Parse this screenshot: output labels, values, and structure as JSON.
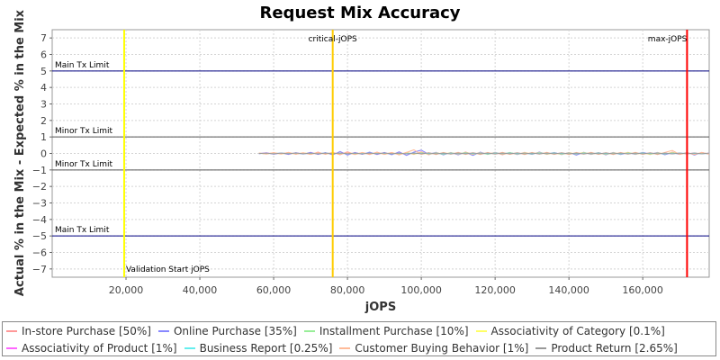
{
  "chart_data": {
    "type": "line",
    "title": "Request Mix Accuracy",
    "xlabel": "jOPS",
    "ylabel": "Actual % in the Mix - Expected % in the Mix",
    "xlim": [
      0,
      178000
    ],
    "ylim": [
      -7.5,
      7.5
    ],
    "x_ticks": [
      20000,
      40000,
      60000,
      80000,
      100000,
      120000,
      140000,
      160000
    ],
    "x_tick_labels": [
      "20,000",
      "40,000",
      "60,000",
      "80,000",
      "100,000",
      "120,000",
      "140,000",
      "160,000"
    ],
    "y_ticks": [
      -7,
      -6,
      -5,
      -4,
      -3,
      -2,
      -1,
      0,
      1,
      2,
      3,
      4,
      5,
      6,
      7
    ],
    "y_tick_labels": [
      "−7",
      "−6",
      "−5",
      "−4",
      "−3",
      "−2",
      "−1",
      "0",
      "1",
      "2",
      "3",
      "4",
      "5",
      "6",
      "7"
    ],
    "grid": true,
    "legend_position": "bottom",
    "horizontal_lines": [
      {
        "label": "Main Tx Limit",
        "y": 5,
        "color": "#000080"
      },
      {
        "label": "Minor Tx Limit",
        "y": 1,
        "color": "#555555"
      },
      {
        "label": "Minor Tx Limit",
        "y": -1,
        "color": "#555555"
      },
      {
        "label": "Main Tx Limit",
        "y": -5,
        "color": "#000080"
      }
    ],
    "vertical_lines": [
      {
        "label": "Validation Start jOPS",
        "x": 19500,
        "color": "#ffff00"
      },
      {
        "label": "critical-jOPS",
        "x": 76000,
        "color": "#ffcc00"
      },
      {
        "label": "max-jOPS",
        "x": 172000,
        "color": "#ff0000"
      }
    ],
    "x": [
      56000,
      58000,
      60000,
      62000,
      64000,
      66000,
      68000,
      70000,
      72000,
      74000,
      76000,
      78000,
      80000,
      82000,
      84000,
      86000,
      88000,
      90000,
      92000,
      94000,
      96000,
      98000,
      100000,
      102000,
      104000,
      106000,
      108000,
      110000,
      112000,
      114000,
      116000,
      118000,
      120000,
      122000,
      124000,
      126000,
      128000,
      130000,
      132000,
      134000,
      136000,
      138000,
      140000,
      142000,
      144000,
      146000,
      148000,
      150000,
      152000,
      154000,
      156000,
      158000,
      160000,
      162000,
      164000,
      166000,
      168000,
      170000,
      172000,
      174000,
      176000,
      178000
    ],
    "series": [
      {
        "name": "In-store Purchase [50%]",
        "color": "#ff9999",
        "values": [
          0.02,
          -0.03,
          0.05,
          -0.04,
          0.06,
          -0.05,
          0.04,
          -0.06,
          0.08,
          -0.05,
          0.06,
          -0.08,
          0.1,
          -0.06,
          0.05,
          -0.07,
          0.08,
          -0.05,
          0.06,
          -0.09,
          0.07,
          -0.06,
          0.1,
          -0.08,
          0.06,
          -0.07,
          0.05,
          -0.08,
          0.09,
          -0.06,
          0.07,
          -0.05,
          0.06,
          -0.08,
          0.05,
          -0.06,
          0.07,
          -0.05,
          0.08,
          -0.06,
          0.05,
          -0.07,
          0.06,
          -0.05,
          0.07,
          -0.06,
          0.05,
          -0.08,
          0.06,
          -0.05,
          0.07,
          -0.06,
          0.05,
          -0.07,
          0.06,
          -0.05,
          0.08,
          -0.06,
          0.05,
          -0.07,
          0.06,
          -0.05
        ]
      },
      {
        "name": "Online Purchase [35%]",
        "color": "#8888ff",
        "values": [
          -0.02,
          0.04,
          -0.05,
          0.03,
          -0.06,
          0.05,
          -0.04,
          0.07,
          -0.06,
          0.05,
          -0.09,
          0.12,
          -0.1,
          0.06,
          -0.05,
          0.08,
          -0.07,
          0.06,
          -0.08,
          0.1,
          -0.12,
          0.08,
          0.2,
          -0.05,
          0.07,
          -0.09,
          0.06,
          -0.08,
          0.05,
          -0.12,
          0.08,
          -0.06,
          0.07,
          -0.05,
          0.06,
          -0.07,
          0.05,
          -0.06,
          0.08,
          -0.05,
          0.06,
          -0.07,
          0.05,
          -0.1,
          0.07,
          -0.06,
          0.05,
          -0.08,
          0.06,
          -0.07,
          0.05,
          -0.06,
          0.07,
          -0.05,
          0.06,
          -0.08,
          0.05,
          -0.06,
          0.07,
          -0.1,
          0.06,
          -0.05
        ]
      },
      {
        "name": "Installment Purchase [10%]",
        "color": "#99ee99",
        "values": [
          0.01,
          -0.02,
          0.02,
          -0.01,
          0.03,
          -0.02,
          0.02,
          -0.03,
          0.03,
          -0.02,
          0.04,
          -0.03,
          0.03,
          -0.04,
          0.02,
          -0.03,
          0.04,
          -0.02,
          0.03,
          -0.04,
          0.03,
          -0.02,
          0.04,
          -0.03,
          0.02,
          -0.04,
          0.03,
          -0.02,
          0.04,
          -0.03,
          0.02,
          -0.04,
          0.03,
          -0.02,
          0.04,
          -0.03,
          0.02,
          -0.03,
          0.04,
          -0.02,
          0.03,
          -0.04,
          0.02,
          -0.03,
          0.04,
          -0.02,
          0.03,
          -0.04,
          0.02,
          -0.03,
          0.04,
          -0.02,
          0.03,
          -0.04,
          0.02,
          -0.03,
          0.04,
          -0.02,
          0.03,
          -0.04,
          0.02,
          -0.03
        ]
      },
      {
        "name": "Associativity of Category [0.1%]",
        "color": "#ffff66",
        "values": [
          0.01,
          -0.01,
          0.02,
          -0.02,
          0.01,
          -0.02,
          0.02,
          -0.01,
          0.02,
          -0.02,
          0.01,
          -0.02,
          0.02,
          -0.01,
          0.02,
          -0.02,
          0.01,
          -0.02,
          0.02,
          -0.01,
          0.02,
          -0.02,
          0.01,
          -0.02,
          0.02,
          -0.01,
          0.02,
          -0.02,
          0.01,
          -0.02,
          0.02,
          -0.01,
          0.02,
          -0.02,
          0.01,
          -0.02,
          0.02,
          -0.01,
          0.02,
          -0.02,
          0.01,
          -0.02,
          0.02,
          -0.01,
          0.02,
          -0.02,
          0.01,
          -0.02,
          0.02,
          -0.01,
          0.02,
          -0.02,
          0.01,
          -0.02,
          0.02,
          -0.01,
          0.02,
          -0.02,
          0.01,
          -0.02,
          0.02,
          -0.01
        ]
      },
      {
        "name": "Associativity of Product [1%]",
        "color": "#ff66ff",
        "values": [
          0.0,
          0.02,
          -0.02,
          0.03,
          -0.02,
          0.02,
          -0.03,
          0.02,
          -0.02,
          0.03,
          -0.02,
          0.03,
          -0.03,
          0.02,
          -0.02,
          0.03,
          -0.02,
          0.02,
          -0.03,
          0.02,
          -0.02,
          0.03,
          -0.02,
          0.02,
          -0.03,
          0.02,
          -0.02,
          0.03,
          -0.02,
          0.02,
          -0.03,
          0.02,
          -0.02,
          0.03,
          -0.02,
          0.02,
          -0.03,
          0.02,
          -0.02,
          0.03,
          -0.02,
          0.02,
          -0.03,
          0.02,
          -0.02,
          0.03,
          -0.02,
          0.02,
          -0.03,
          0.02,
          -0.02,
          0.03,
          -0.02,
          0.02,
          -0.03,
          0.02,
          -0.02,
          0.03,
          -0.02,
          0.02,
          -0.03,
          0.02
        ]
      },
      {
        "name": "Business Report [0.25%]",
        "color": "#66eeee",
        "values": [
          0.01,
          0.0,
          -0.01,
          0.02,
          -0.01,
          0.01,
          -0.02,
          0.01,
          -0.01,
          0.02,
          -0.01,
          0.01,
          -0.02,
          0.01,
          -0.01,
          0.02,
          -0.01,
          0.01,
          -0.02,
          0.01,
          -0.01,
          0.02,
          -0.01,
          0.01,
          -0.02,
          0.01,
          -0.01,
          0.02,
          -0.01,
          0.01,
          -0.02,
          0.01,
          -0.01,
          0.02,
          -0.01,
          0.01,
          -0.02,
          0.01,
          -0.01,
          0.02,
          -0.01,
          0.01,
          -0.02,
          0.01,
          -0.01,
          0.02,
          -0.01,
          0.01,
          -0.02,
          0.01,
          -0.01,
          0.02,
          -0.01,
          0.01,
          -0.02,
          0.01,
          -0.01,
          0.02,
          -0.01,
          0.01,
          -0.02,
          0.01
        ]
      },
      {
        "name": "Customer Buying Behavior [1%]",
        "color": "#ffbb99",
        "values": [
          0.03,
          -0.04,
          0.05,
          -0.03,
          0.06,
          -0.05,
          0.04,
          -0.06,
          0.05,
          -0.04,
          0.07,
          -0.06,
          0.05,
          -0.07,
          0.06,
          -0.05,
          0.07,
          -0.06,
          0.05,
          -0.08,
          0.06,
          0.22,
          -0.06,
          0.05,
          -0.07,
          0.06,
          -0.05,
          0.07,
          -0.06,
          0.05,
          -0.07,
          0.06,
          -0.05,
          0.07,
          -0.06,
          0.05,
          -0.07,
          0.06,
          -0.05,
          0.07,
          -0.06,
          0.05,
          -0.07,
          0.06,
          -0.05,
          0.07,
          -0.06,
          0.05,
          -0.07,
          0.06,
          -0.05,
          0.07,
          -0.06,
          0.05,
          -0.07,
          0.06,
          0.18,
          -0.06,
          0.05,
          -0.07,
          0.06,
          -0.05
        ]
      },
      {
        "name": "Product Return [2.65%]",
        "color": "#999999",
        "values": [
          -0.01,
          0.02,
          -0.03,
          0.02,
          -0.02,
          0.03,
          -0.02,
          0.02,
          -0.03,
          0.02,
          -0.02,
          0.03,
          -0.02,
          0.02,
          -0.03,
          0.02,
          -0.02,
          0.03,
          -0.02,
          0.02,
          -0.03,
          0.02,
          -0.02,
          0.03,
          -0.02,
          0.02,
          -0.03,
          0.02,
          -0.02,
          0.03,
          -0.02,
          0.02,
          -0.03,
          0.02,
          -0.02,
          0.03,
          -0.02,
          0.02,
          -0.03,
          0.02,
          -0.02,
          0.03,
          -0.02,
          0.02,
          -0.03,
          0.02,
          -0.02,
          0.03,
          -0.02,
          0.02,
          -0.03,
          0.02,
          -0.02,
          0.03,
          -0.02,
          0.02,
          -0.03,
          0.02,
          -0.02,
          0.03,
          -0.02,
          0.02
        ]
      }
    ]
  }
}
